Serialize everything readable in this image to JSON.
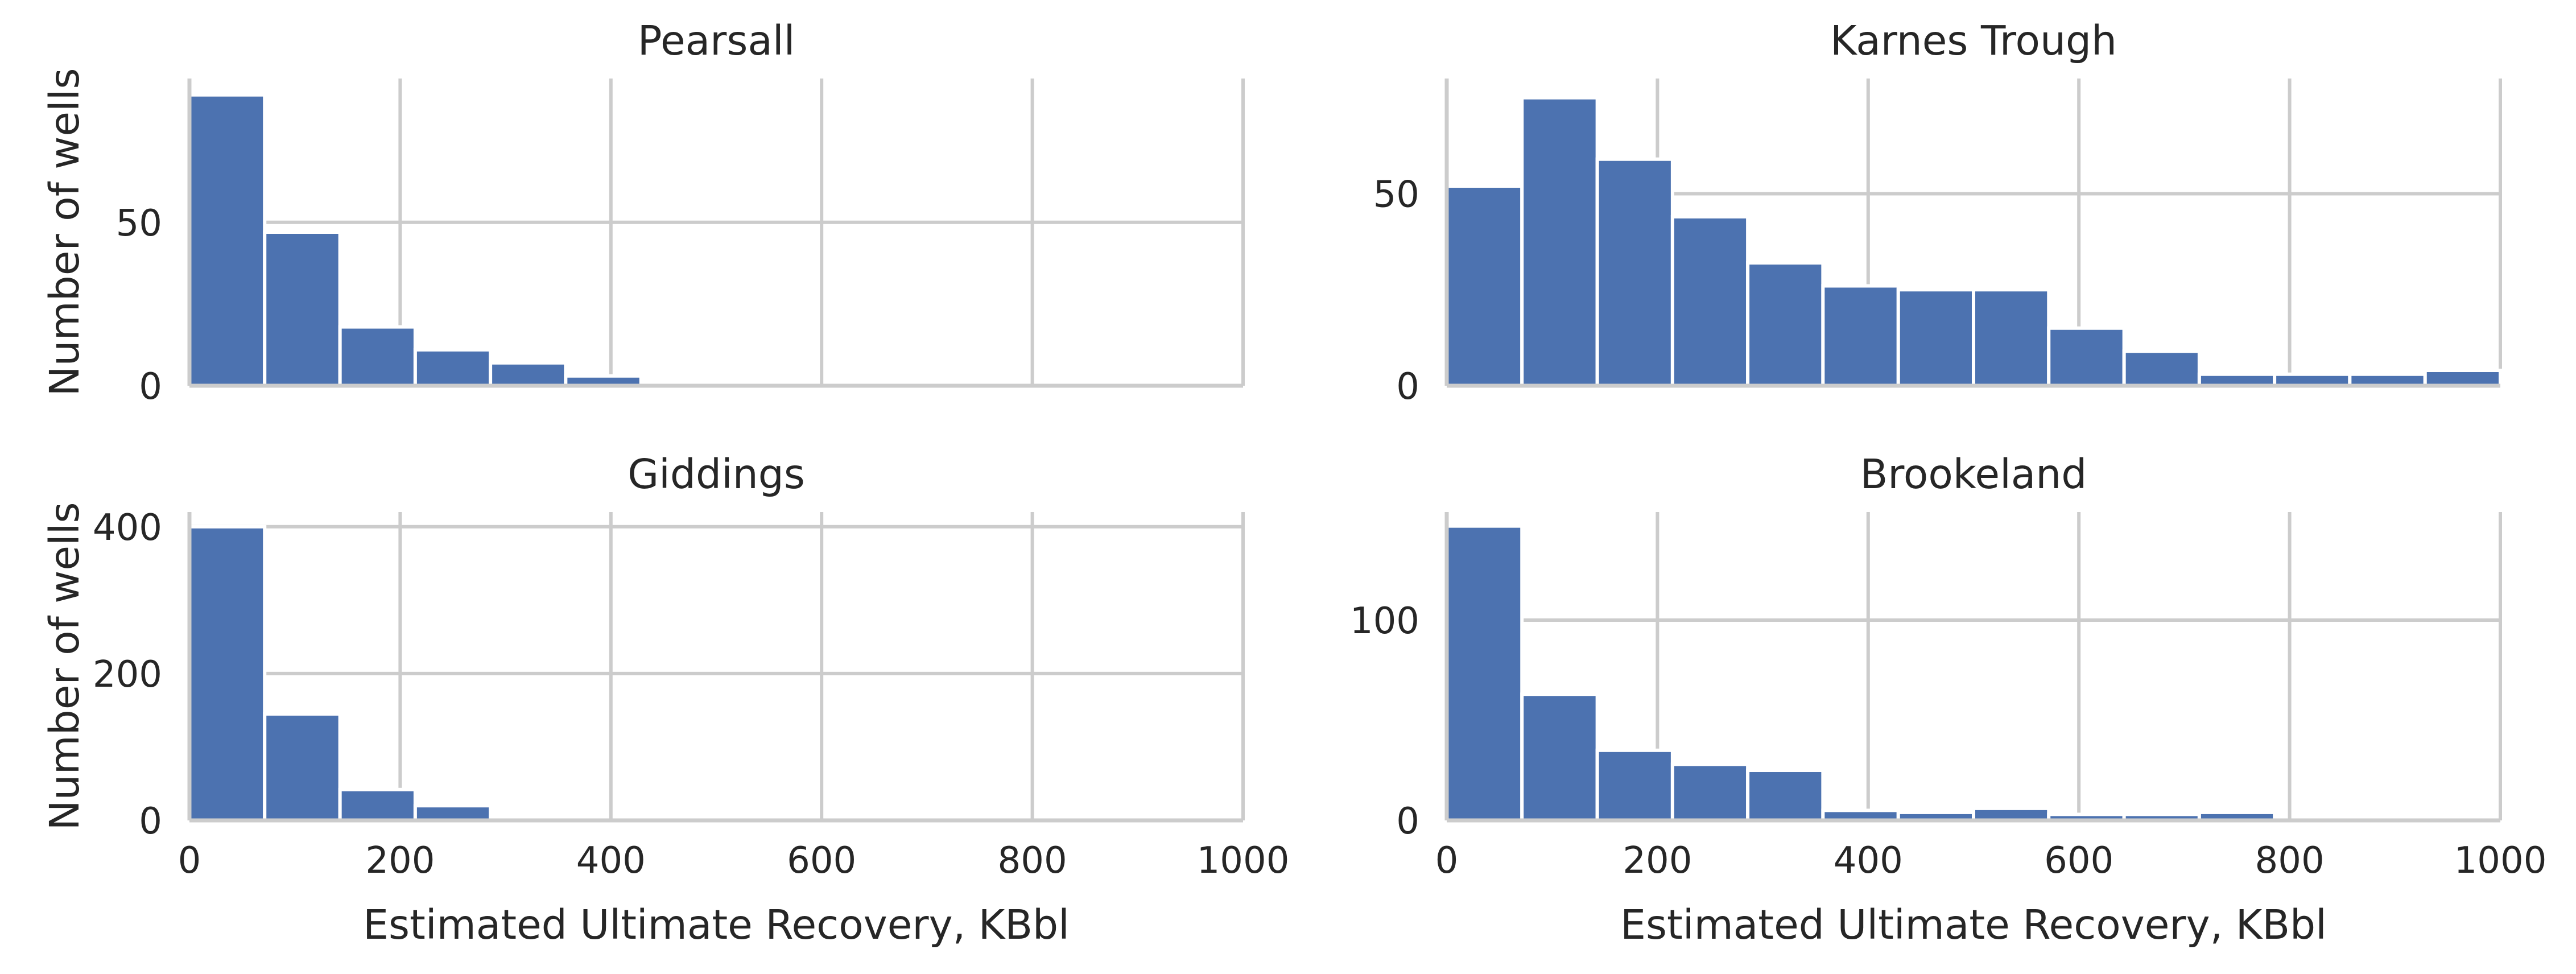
{
  "figure": {
    "bar_color": "#4c72b0",
    "grid_color": "#cccccc",
    "background": "#ffffff"
  },
  "chart_data": [
    {
      "type": "bar",
      "title": "Pearsall",
      "xlabel": "",
      "ylabel": "Number of wells",
      "xlim": [
        0,
        1000
      ],
      "ylim": [
        0,
        94
      ],
      "yticks": [
        0,
        50
      ],
      "bin_edges": [
        0,
        71.4,
        142.9,
        214.3,
        285.7,
        357.1,
        428.6
      ],
      "values": [
        89,
        47,
        18,
        11,
        7,
        3
      ],
      "grid": true
    },
    {
      "type": "bar",
      "title": "Karnes Trough",
      "xlabel": "",
      "ylabel": "",
      "xlim": [
        0,
        1000
      ],
      "ylim": [
        0,
        80
      ],
      "yticks": [
        0,
        50
      ],
      "bin_edges": [
        0,
        71.4,
        142.9,
        214.3,
        285.7,
        357.1,
        428.6,
        500,
        571.4,
        642.9,
        714.3,
        785.7,
        857.1,
        928.6,
        1000
      ],
      "values": [
        52,
        75,
        59,
        44,
        32,
        26,
        25,
        25,
        15,
        9,
        3,
        3,
        3,
        4
      ],
      "grid": true
    },
    {
      "type": "bar",
      "title": "Giddings",
      "xlabel": "Estimated Ultimate Recovery, KBbl",
      "ylabel": "Number of wells",
      "xlim": [
        0,
        1000
      ],
      "ylim": [
        0,
        420
      ],
      "yticks": [
        0,
        200,
        400
      ],
      "xticks": [
        0,
        200,
        400,
        600,
        800,
        1000
      ],
      "bin_edges": [
        0,
        71.4,
        142.9,
        214.3,
        285.7,
        357.1
      ],
      "values": [
        400,
        145,
        42,
        20,
        5
      ],
      "grid": true
    },
    {
      "type": "bar",
      "title": "Brookeland",
      "xlabel": "Estimated Ultimate Recovery, KBbl",
      "ylabel": "",
      "xlim": [
        0,
        1000
      ],
      "ylim": [
        0,
        154
      ],
      "yticks": [
        0,
        100
      ],
      "xticks": [
        0,
        200,
        400,
        600,
        800,
        1000
      ],
      "bin_edges": [
        0,
        71.4,
        142.9,
        214.3,
        285.7,
        357.1,
        428.6,
        500,
        571.4,
        642.9,
        714.3,
        785.7
      ],
      "values": [
        147,
        63,
        35,
        28,
        25,
        5,
        4,
        6,
        3,
        3,
        4
      ],
      "grid": true
    }
  ]
}
